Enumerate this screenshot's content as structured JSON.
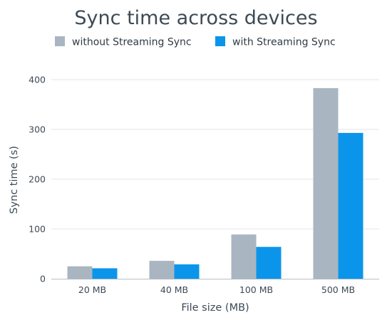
{
  "chart_data": {
    "type": "bar",
    "title": "Sync time across devices",
    "xlabel": "File size (MB)",
    "ylabel": "Sync time (s)",
    "categories": [
      "20 MB",
      "40 MB",
      "100 MB",
      "500 MB"
    ],
    "series": [
      {
        "name": "without Streaming Sync",
        "color": "#a9b6c1",
        "values": [
          25,
          36,
          89,
          383
        ]
      },
      {
        "name": "with Streaming Sync",
        "color": "#0b95ea",
        "values": [
          21,
          29,
          64,
          293
        ]
      }
    ],
    "ylim": [
      0,
      400
    ],
    "yticks": [
      0,
      100,
      200,
      300,
      400
    ],
    "grid": true,
    "legend_position": "top"
  }
}
